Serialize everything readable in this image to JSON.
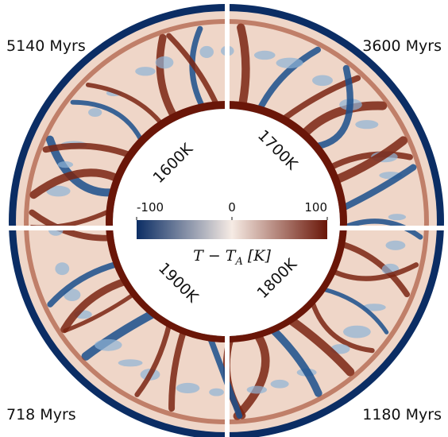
{
  "panels": [
    {
      "time": "5140 Myrs",
      "temperature": "1600K"
    },
    {
      "time": "3600 Myrs",
      "temperature": "1700K"
    },
    {
      "time": "718 Myrs",
      "temperature": "1900K"
    },
    {
      "time": "1180 Myrs",
      "temperature": "1800K"
    }
  ],
  "colorbar": {
    "min": -100,
    "max": 100,
    "ticks": [
      -100,
      0,
      100
    ],
    "colors": [
      "#0b2d64",
      "#f6ebe4",
      "#6a1608"
    ],
    "label": {
      "main": "T − T",
      "sub": "A",
      "unit": "[K]"
    }
  }
}
